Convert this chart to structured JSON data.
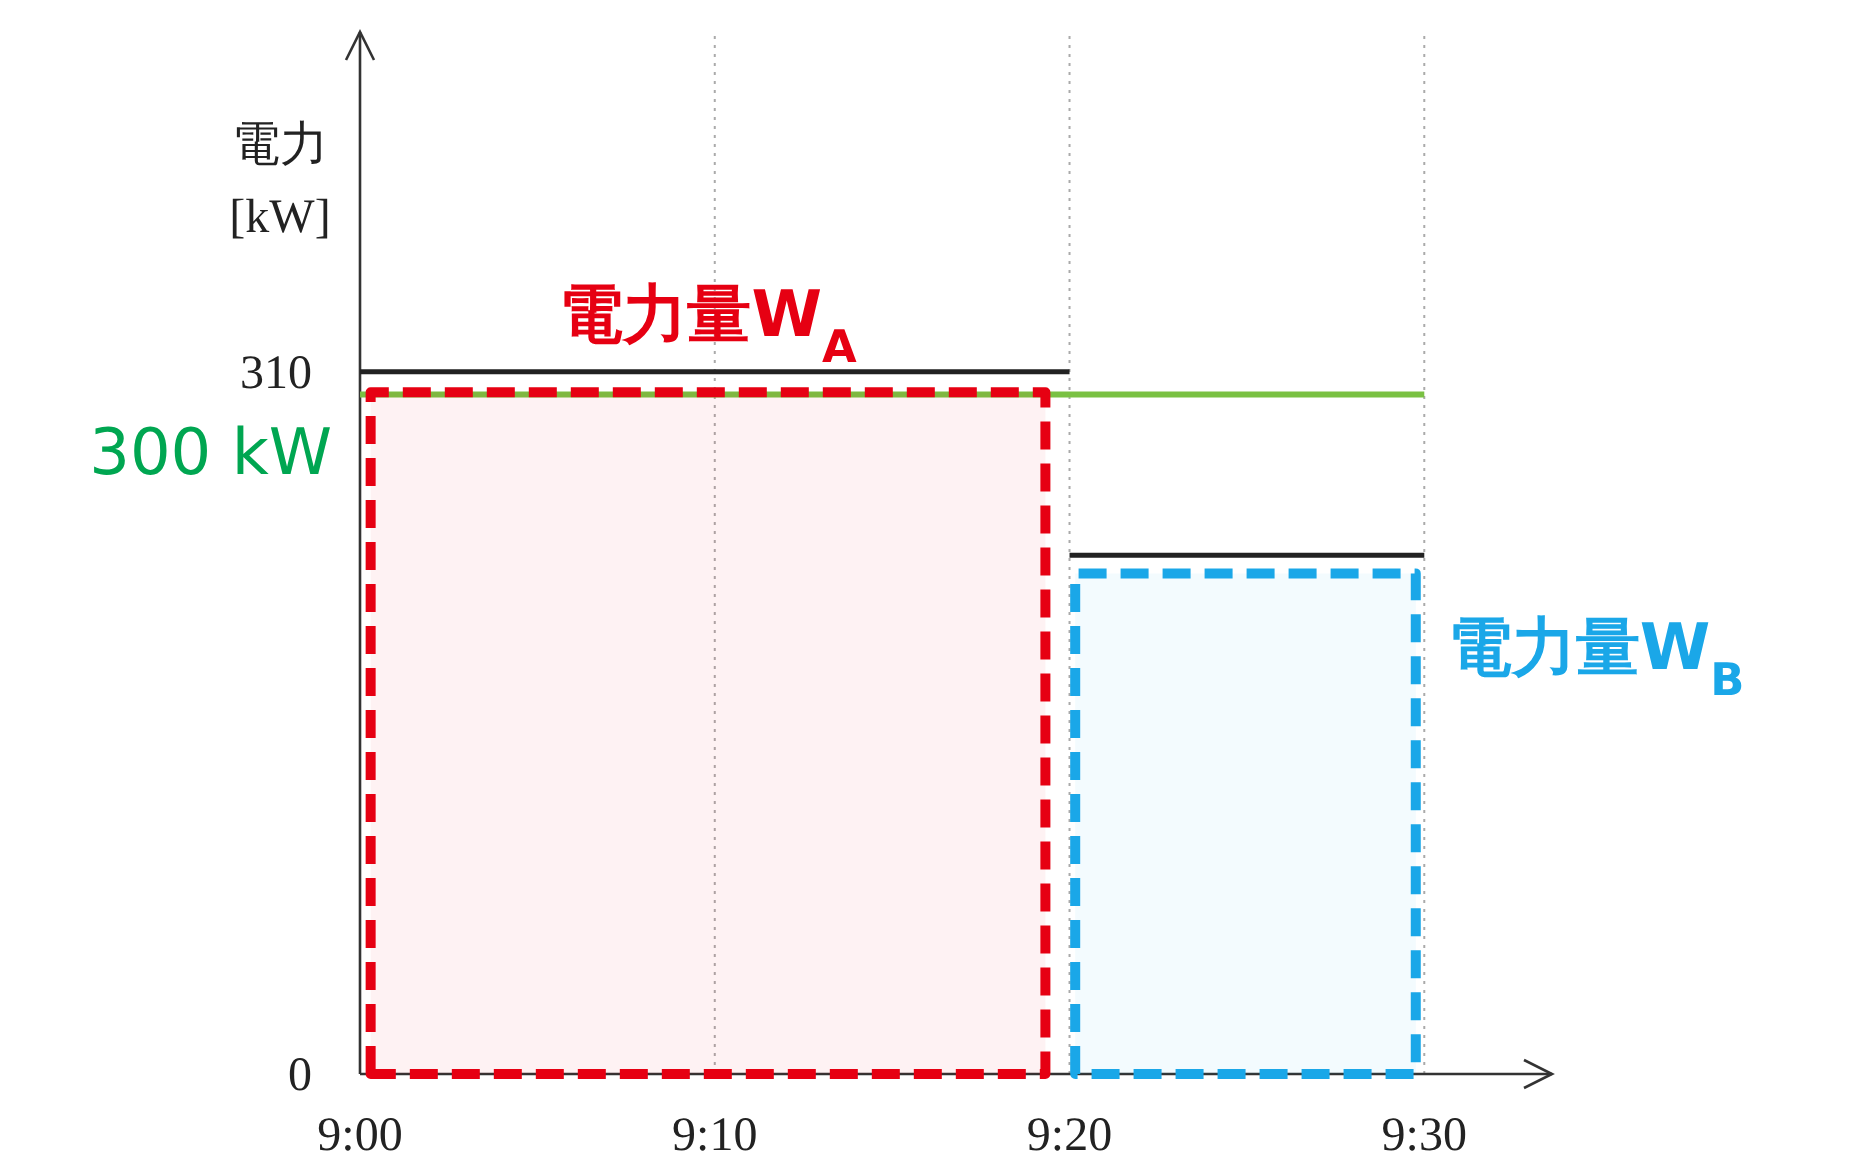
{
  "chart_data": {
    "type": "step",
    "ylabel": "電力\n[kW]",
    "x": [
      9,
      9.333333,
      9.333333,
      9.5
    ],
    "series": [
      {
        "color": "#222222",
        "values": [
          310,
          310,
          229,
          229
        ]
      },
      {
        "type": "area",
        "name": "電力量W$_{A}$",
        "color": "#e60012",
        "x": [
          9.005,
          9.322
        ],
        "values": [
          301,
          301
        ]
      },
      {
        "type": "area",
        "name": "電力量W$_{B}$",
        "color": "#1aa7e8",
        "x": [
          9.336,
          9.496
        ],
        "values": [
          221,
          221
        ]
      }
    ],
    "xlim": [
      9,
      9.56
    ],
    "ylim": [
      0,
      460
    ],
    "xticks": [
      {
        "value": 9,
        "label": "9:00"
      },
      {
        "value": 9.166667,
        "label": "9:10"
      },
      {
        "value": 9.333333,
        "label": "9:20"
      },
      {
        "value": 9.5,
        "label": "9:30"
      }
    ],
    "yticks": [
      0,
      310
    ],
    "grid": "x",
    "ref_lines": [
      {
        "axis": "y",
        "value": 300,
        "label": "300 kW",
        "color": "#7ac143"
      }
    ]
  }
}
